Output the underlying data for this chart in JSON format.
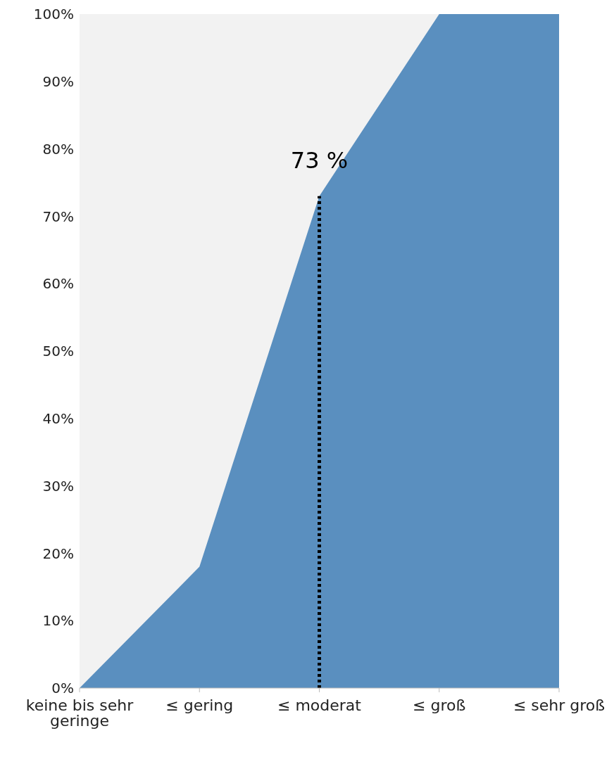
{
  "chart_data": {
    "type": "area",
    "categories": [
      "keine bis sehr geringe",
      "≤ gering",
      "≤ moderat",
      "≤ groß",
      "≤ sehr groß"
    ],
    "values": [
      0,
      18,
      73,
      100,
      100
    ],
    "color": "#5a8fbf",
    "ylim": [
      0,
      100
    ],
    "yticks": [
      {
        "value": 0,
        "label": "0%"
      },
      {
        "value": 10,
        "label": "10%"
      },
      {
        "value": 20,
        "label": "20%"
      },
      {
        "value": 30,
        "label": "30%"
      },
      {
        "value": 40,
        "label": "40%"
      },
      {
        "value": 50,
        "label": "50%"
      },
      {
        "value": 60,
        "label": "60%"
      },
      {
        "value": 70,
        "label": "70%"
      },
      {
        "value": 80,
        "label": "80%"
      },
      {
        "value": 90,
        "label": "90%"
      },
      {
        "value": 100,
        "label": "100%"
      }
    ],
    "annotations": [
      {
        "text": "73 %",
        "x": "≤ moderat",
        "y": 73
      }
    ],
    "ref_lines": [
      {
        "axis": "x",
        "value": "≤ moderat",
        "color": "#000000",
        "line_style": "dotted"
      }
    ]
  }
}
